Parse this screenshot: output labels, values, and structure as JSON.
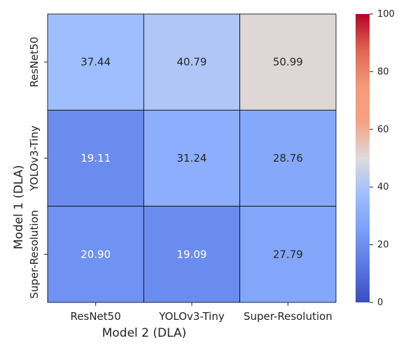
{
  "chart_data": {
    "type": "heatmap",
    "title": "",
    "xlabel": "Model 2 (DLA)",
    "ylabel": "Model 1 (DLA)",
    "x_categories": [
      "ResNet50",
      "YOLOv3-Tiny",
      "Super-Resolution"
    ],
    "y_categories": [
      "ResNet50",
      "YOLOv3-Tiny",
      "Super-Resolution"
    ],
    "values": [
      [
        37.44,
        40.79,
        50.99
      ],
      [
        19.11,
        31.24,
        28.76
      ],
      [
        20.9,
        19.09,
        27.79
      ]
    ],
    "value_labels": [
      [
        "37.44",
        "40.79",
        "50.99"
      ],
      [
        "19.11",
        "31.24",
        "28.76"
      ],
      [
        "20.90",
        "19.09",
        "27.79"
      ]
    ],
    "colormap": "coolwarm",
    "vmin": 0,
    "vmax": 100,
    "colorbar_ticks": [
      0,
      20,
      40,
      60,
      80,
      100
    ],
    "colorbar_tick_labels": [
      "0",
      "20",
      "40",
      "60",
      "80",
      "100"
    ],
    "cell_border_color": "#000000",
    "annotation_dark_text": "#262626",
    "annotation_light_text": "#ffffff"
  }
}
